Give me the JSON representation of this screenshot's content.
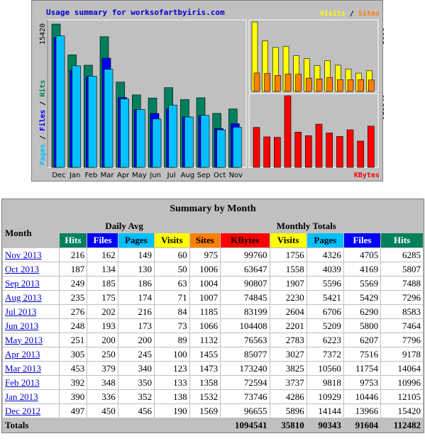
{
  "chart": {
    "title": "Usage summary for worksofartbyiris.com",
    "legend_left": {
      "pages": "Pages",
      "sep1": " / ",
      "files": "Files",
      "sep2": " / ",
      "hits": "Hits"
    },
    "legend_right_top": {
      "visits": "Visits",
      "sep": " / ",
      "sites": "Sites"
    },
    "legend_right_bottom": "KBytes",
    "left_max_label": "15420",
    "right_top_max_label": "5896",
    "right_bottom_max_label": "173240",
    "colors": {
      "hits": "#00805c",
      "files": "#0000ff",
      "pages": "#00c0ff",
      "visits": "#ffff00",
      "sites": "#ff8000",
      "kbytes": "#ff0000",
      "panel": "#c0c0c0"
    }
  },
  "chart_data": {
    "type": "bar",
    "categories": [
      "Dec",
      "Jan",
      "Feb",
      "Mar",
      "Apr",
      "May",
      "Jun",
      "Jul",
      "Aug",
      "Sep",
      "Oct",
      "Nov"
    ],
    "series": [
      {
        "name": "Hits",
        "values": [
          15420,
          12105,
          10996,
          14064,
          9178,
          7796,
          7464,
          8583,
          7296,
          7488,
          5807,
          6285
        ]
      },
      {
        "name": "Files",
        "values": [
          13966,
          10446,
          9753,
          11754,
          7516,
          6207,
          5800,
          6290,
          5429,
          5569,
          4169,
          4705
        ]
      },
      {
        "name": "Pages",
        "values": [
          14144,
          10929,
          9818,
          10560,
          7372,
          6223,
          5209,
          6706,
          5421,
          5596,
          4039,
          4326
        ]
      },
      {
        "name": "Visits",
        "values": [
          5896,
          4286,
          3737,
          3825,
          3027,
          2783,
          2201,
          2604,
          2230,
          1907,
          1558,
          1756
        ]
      },
      {
        "name": "Sites",
        "values": [
          1569,
          1532,
          1358,
          1473,
          1455,
          1132,
          1066,
          1185,
          1007,
          1004,
          1006,
          975
        ]
      },
      {
        "name": "KBytes",
        "values": [
          96655,
          73746,
          72594,
          173240,
          85077,
          76563,
          104408,
          83199,
          74845,
          90807,
          63647,
          99760
        ]
      }
    ]
  },
  "summary": {
    "title": "Summary by Month",
    "month_header": "Month",
    "daily_avg_header": "Daily Avg",
    "monthly_totals_header": "Monthly Totals",
    "daily_cols": [
      {
        "label": "Hits",
        "color": "#00805c"
      },
      {
        "label": "Files",
        "color": "#0000ff"
      },
      {
        "label": "Pages",
        "color": "#00c0ff"
      },
      {
        "label": "Visits",
        "color": "#ffff00"
      }
    ],
    "monthly_cols": [
      {
        "label": "Sites",
        "color": "#ff8000"
      },
      {
        "label": "KBytes",
        "color": "#ff0000"
      },
      {
        "label": "Visits",
        "color": "#ffff00"
      },
      {
        "label": "Pages",
        "color": "#00c0ff"
      },
      {
        "label": "Files",
        "color": "#0000ff"
      },
      {
        "label": "Hits",
        "color": "#00805c"
      }
    ],
    "rows": [
      {
        "month": "Nov 2013",
        "vals": [
          "216",
          "162",
          "149",
          "60",
          "975",
          "99760",
          "1756",
          "4326",
          "4705",
          "6285"
        ]
      },
      {
        "month": "Oct 2013",
        "vals": [
          "187",
          "134",
          "130",
          "50",
          "1006",
          "63647",
          "1558",
          "4039",
          "4169",
          "5807"
        ]
      },
      {
        "month": "Sep 2013",
        "vals": [
          "249",
          "185",
          "186",
          "63",
          "1004",
          "90807",
          "1907",
          "5596",
          "5569",
          "7488"
        ]
      },
      {
        "month": "Aug 2013",
        "vals": [
          "235",
          "175",
          "174",
          "71",
          "1007",
          "74845",
          "2230",
          "5421",
          "5429",
          "7296"
        ]
      },
      {
        "month": "Jul 2013",
        "vals": [
          "276",
          "202",
          "216",
          "84",
          "1185",
          "83199",
          "2604",
          "6706",
          "6290",
          "8583"
        ]
      },
      {
        "month": "Jun 2013",
        "vals": [
          "248",
          "193",
          "173",
          "73",
          "1066",
          "104408",
          "2201",
          "5209",
          "5800",
          "7464"
        ]
      },
      {
        "month": "May 2013",
        "vals": [
          "251",
          "200",
          "200",
          "89",
          "1132",
          "76563",
          "2783",
          "6223",
          "6207",
          "7796"
        ]
      },
      {
        "month": "Apr 2013",
        "vals": [
          "305",
          "250",
          "245",
          "100",
          "1455",
          "85077",
          "3027",
          "7372",
          "7516",
          "9178"
        ]
      },
      {
        "month": "Mar 2013",
        "vals": [
          "453",
          "379",
          "340",
          "123",
          "1473",
          "173240",
          "3825",
          "10560",
          "11754",
          "14064"
        ]
      },
      {
        "month": "Feb 2013",
        "vals": [
          "392",
          "348",
          "350",
          "133",
          "1358",
          "72594",
          "3737",
          "9818",
          "9753",
          "10996"
        ]
      },
      {
        "month": "Jan 2013",
        "vals": [
          "390",
          "336",
          "352",
          "138",
          "1532",
          "73746",
          "4286",
          "10929",
          "10446",
          "12105"
        ]
      },
      {
        "month": "Dec 2012",
        "vals": [
          "497",
          "450",
          "456",
          "190",
          "1569",
          "96655",
          "5896",
          "14144",
          "13966",
          "15420"
        ]
      }
    ],
    "totals_label": "Totals",
    "totals": [
      "1094541",
      "35810",
      "90343",
      "91604",
      "112482"
    ]
  }
}
